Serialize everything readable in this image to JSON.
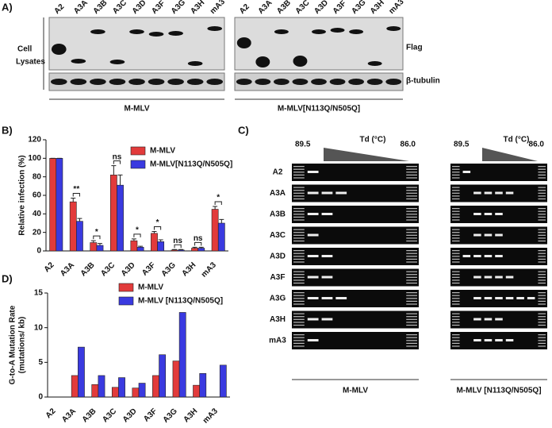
{
  "panel_a": {
    "label": "A)",
    "lanes": [
      "A2",
      "A3A",
      "A3B",
      "A3C",
      "A3D",
      "A3F",
      "A3G",
      "A3H",
      "mA3"
    ],
    "row_title": [
      "Cell",
      "Lysates"
    ],
    "blots": [
      "Flag",
      "β-tubulin"
    ],
    "groups": [
      "M-MLV",
      "M-MLV[N113Q/N505Q]"
    ]
  },
  "panel_c": {
    "label": "C)",
    "td_start": "89.5",
    "td_label": "Td (°C)",
    "td_end": "86.0",
    "rows": [
      "A2",
      "A3A",
      "A3B",
      "A3C",
      "A3D",
      "A3F",
      "A3G",
      "A3H",
      "mA3"
    ],
    "groups": [
      "M-MLV",
      "M-MLV [N113Q/N505Q]"
    ]
  },
  "chart_data": [
    {
      "type": "bar",
      "panel": "B)",
      "ylabel": [
        "Relative infection (%)"
      ],
      "categories": [
        "A2",
        "A3A",
        "A3B",
        "A3C",
        "A3D",
        "A3F",
        "A3G",
        "A3H",
        "mA3"
      ],
      "series": [
        {
          "name": "M-MLV",
          "color": "#e23b3b",
          "values": [
            100,
            53,
            9,
            82,
            11,
            19,
            1,
            3,
            45
          ],
          "errors": [
            0,
            4,
            2,
            10,
            2,
            2,
            0.5,
            1,
            3
          ]
        },
        {
          "name": "M-MLV[N113Q/N505Q]",
          "color": "#3a3ae0",
          "values": [
            100,
            32,
            6,
            71,
            4,
            10,
            1,
            3,
            30
          ],
          "errors": [
            0,
            3,
            2,
            11,
            1,
            2,
            0.5,
            1,
            4
          ]
        }
      ],
      "significance": {
        "A3A": "**",
        "A3B": "*",
        "A3C": "ns",
        "A3D": "*",
        "A3F": "*",
        "A3G": "ns",
        "A3H": "ns",
        "mA3": "*"
      },
      "ylim": [
        0,
        120
      ],
      "yticks": [
        0,
        20,
        40,
        60,
        80,
        100,
        120
      ]
    },
    {
      "type": "bar",
      "panel": "D)",
      "ylabel": [
        "G-to-A Mutation Rate",
        "(mutations/ kb)"
      ],
      "categories": [
        "A2",
        "A3A",
        "A3B",
        "A3C",
        "A3D",
        "A3F",
        "A3G",
        "A3H",
        "mA3"
      ],
      "series": [
        {
          "name": "M-MLV",
          "color": "#e23b3b",
          "values": [
            0,
            3.1,
            1.8,
            1.4,
            1.3,
            3.1,
            5.2,
            1.7,
            0
          ]
        },
        {
          "name": "M-MLV [N113Q/N505Q]",
          "color": "#3a3ae0",
          "values": [
            0,
            7.2,
            3.1,
            2.8,
            2.0,
            6.1,
            12.2,
            3.4,
            4.6
          ]
        }
      ],
      "ylim": [
        0,
        15
      ],
      "yticks": [
        0,
        5,
        10,
        15
      ]
    }
  ]
}
